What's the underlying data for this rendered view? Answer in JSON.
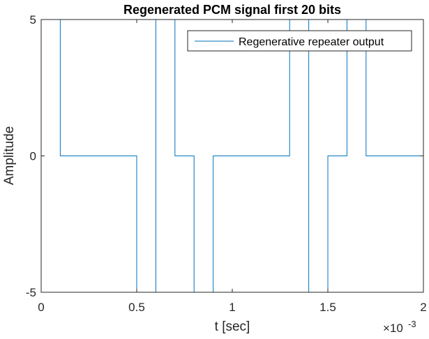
{
  "chart_data": {
    "type": "line",
    "title": "Regenerated PCM signal first 20 bits",
    "xlabel": "t [sec]",
    "ylabel": "Amplitude",
    "x_exponent_base": "×10",
    "x_exponent_power": "-3",
    "xlim": [
      0,
      2
    ],
    "ylim": [
      -5,
      5
    ],
    "xticks": [
      0,
      0.5,
      1,
      1.5,
      2
    ],
    "xtick_labels": [
      "0",
      "0.5",
      "1",
      "1.5",
      "2"
    ],
    "yticks": [
      -5,
      0,
      5
    ],
    "ytick_labels": [
      "-5",
      "0",
      "5"
    ],
    "grid": false,
    "legend_location": "top-right",
    "line_style": "stairs",
    "colors": {
      "series": "#0072BD",
      "axes": "#262626"
    },
    "series": [
      {
        "name": "Regenerative repeater output",
        "x": [
          0,
          0.1,
          0.2,
          0.3,
          0.4,
          0.5,
          0.6,
          0.7,
          0.8,
          0.9,
          1.0,
          1.1,
          1.2,
          1.3,
          1.4,
          1.5,
          1.6,
          1.7,
          1.8,
          1.9,
          2.0
        ],
        "values": [
          5,
          0,
          0,
          0,
          0,
          -5,
          5,
          0,
          -5,
          0,
          0,
          0,
          0,
          5,
          -5,
          0,
          5,
          0,
          0,
          0,
          0
        ]
      }
    ]
  }
}
